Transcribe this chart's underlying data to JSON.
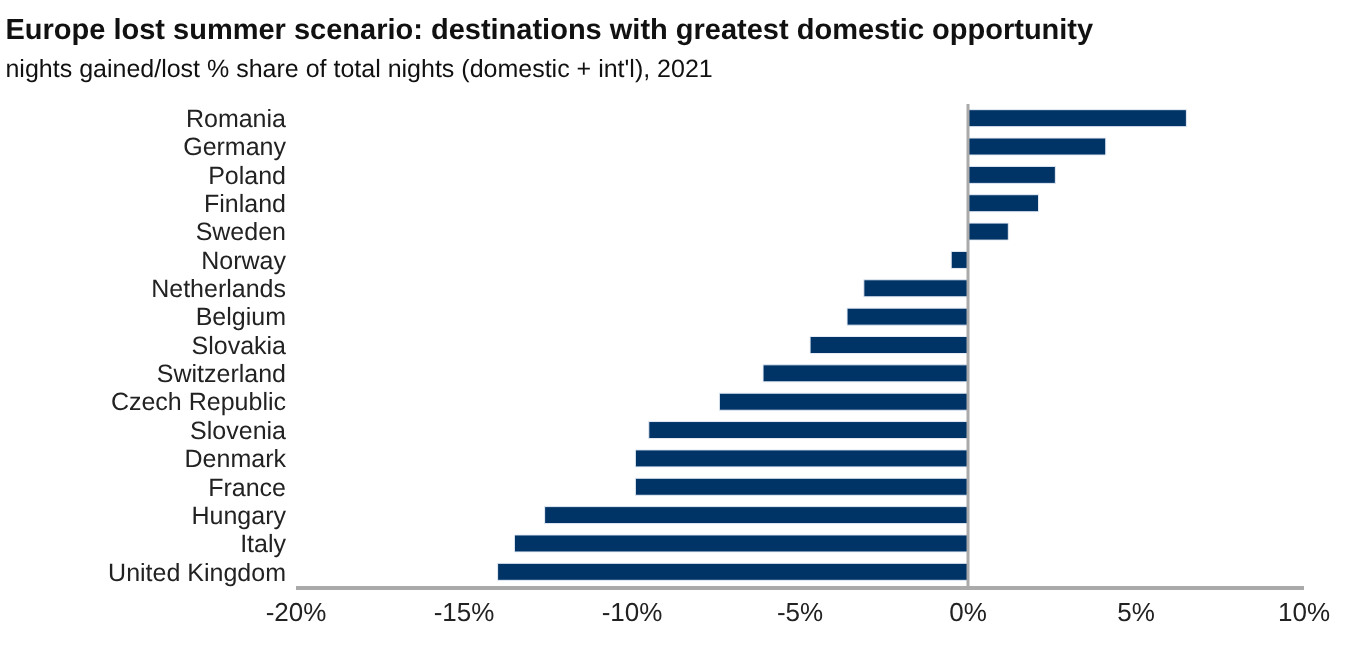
{
  "chart_data": {
    "type": "bar",
    "orientation": "horizontal",
    "title": "Europe lost summer scenario: destinations with greatest domestic opportunity",
    "subtitle": "nights gained/lost % share of total nights (domestic + int'l), 2021",
    "categories": [
      "Romania",
      "Germany",
      "Poland",
      "Finland",
      "Sweden",
      "Norway",
      "Netherlands",
      "Belgium",
      "Slovakia",
      "Switzerland",
      "Czech Republic",
      "Slovenia",
      "Denmark",
      "France",
      "Hungary",
      "Italy",
      "United Kingdom"
    ],
    "values": [
      6.5,
      4.1,
      2.6,
      2.1,
      1.2,
      -0.5,
      -3.1,
      -3.6,
      -4.7,
      -6.1,
      -7.4,
      -9.5,
      -9.9,
      -9.9,
      -12.6,
      -13.5,
      -14.0
    ],
    "color": "#003366",
    "xlim": [
      -20,
      10
    ],
    "xticks": [
      {
        "value": -20,
        "label": "-20%"
      },
      {
        "value": -15,
        "label": "-15%"
      },
      {
        "value": -10,
        "label": "-10%"
      },
      {
        "value": -5,
        "label": "-5%"
      },
      {
        "value": 0,
        "label": "0%"
      },
      {
        "value": 5,
        "label": "5%"
      },
      {
        "value": 10,
        "label": "10%"
      }
    ],
    "ref_lines": [
      {
        "axis": "x",
        "value": 0,
        "color": "#aaaaaa"
      }
    ],
    "grid": false
  }
}
